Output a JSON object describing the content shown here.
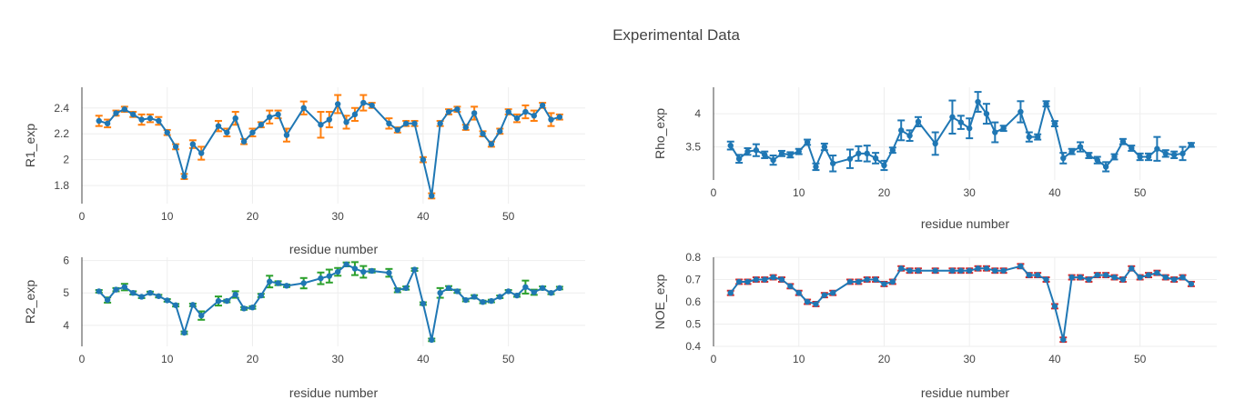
{
  "title": "Experimental Data",
  "colors": {
    "line": "#1f77b4",
    "grid": "#eeeeee",
    "axis": "#444444",
    "text": "#444444"
  },
  "chart_data": [
    {
      "type": "line",
      "ylabel": "R1_exp",
      "xlabel": "residue number",
      "err_color": "#ff7f0e",
      "xlim": [
        0,
        59
      ],
      "ylim": [
        1.66,
        2.56
      ],
      "xticks": [
        0,
        10,
        20,
        30,
        40,
        50
      ],
      "yticks": [
        1.8,
        2,
        2.2,
        2.4
      ],
      "ytick_labels": [
        "1.8",
        "2",
        "2.2",
        "2.4"
      ],
      "grid": true,
      "x": [
        2,
        3,
        4,
        5,
        6,
        7,
        8,
        9,
        10,
        11,
        12,
        13,
        14,
        16,
        17,
        18,
        19,
        20,
        21,
        22,
        23,
        24,
        26,
        28,
        29,
        30,
        31,
        32,
        33,
        34,
        36,
        37,
        38,
        39,
        40,
        41,
        42,
        43,
        44,
        45,
        46,
        47,
        48,
        49,
        50,
        51,
        52,
        53,
        54,
        55,
        56
      ],
      "y": [
        2.3,
        2.28,
        2.36,
        2.39,
        2.35,
        2.31,
        2.32,
        2.3,
        2.21,
        2.1,
        1.87,
        2.12,
        2.05,
        2.26,
        2.21,
        2.32,
        2.14,
        2.21,
        2.27,
        2.33,
        2.35,
        2.19,
        2.4,
        2.27,
        2.31,
        2.43,
        2.29,
        2.35,
        2.44,
        2.42,
        2.28,
        2.23,
        2.28,
        2.28,
        2.0,
        1.72,
        2.28,
        2.37,
        2.39,
        2.25,
        2.36,
        2.2,
        2.12,
        2.22,
        2.37,
        2.32,
        2.37,
        2.34,
        2.42,
        2.31,
        2.33
      ],
      "err": [
        0.04,
        0.03,
        0.02,
        0.02,
        0.02,
        0.04,
        0.03,
        0.03,
        0.02,
        0.02,
        0.02,
        0.03,
        0.05,
        0.04,
        0.03,
        0.05,
        0.02,
        0.03,
        0.02,
        0.05,
        0.03,
        0.05,
        0.05,
        0.1,
        0.06,
        0.07,
        0.05,
        0.05,
        0.06,
        0.02,
        0.04,
        0.02,
        0.02,
        0.02,
        0.02,
        0.02,
        0.02,
        0.02,
        0.02,
        0.02,
        0.05,
        0.02,
        0.02,
        0.02,
        0.02,
        0.03,
        0.05,
        0.04,
        0.02,
        0.05,
        0.02
      ]
    },
    {
      "type": "line",
      "ylabel": "Rho_exp",
      "xlabel": "residue number",
      "err_color": "#1f77b4",
      "xlim": [
        0,
        59
      ],
      "ylim": [
        3.0,
        4.4
      ],
      "xticks": [
        0,
        10,
        20,
        30,
        40,
        50
      ],
      "yticks": [
        3.5,
        4
      ],
      "ytick_labels": [
        "3.5",
        "4"
      ],
      "grid": true,
      "x": [
        2,
        3,
        4,
        5,
        6,
        7,
        8,
        9,
        10,
        11,
        12,
        13,
        14,
        16,
        17,
        18,
        19,
        20,
        21,
        22,
        23,
        24,
        26,
        28,
        29,
        30,
        31,
        32,
        33,
        34,
        36,
        37,
        38,
        39,
        40,
        41,
        42,
        43,
        44,
        45,
        46,
        47,
        48,
        49,
        50,
        51,
        52,
        53,
        54,
        55,
        56
      ],
      "y": [
        3.52,
        3.32,
        3.43,
        3.45,
        3.38,
        3.3,
        3.4,
        3.38,
        3.43,
        3.57,
        3.2,
        3.5,
        3.25,
        3.32,
        3.4,
        3.4,
        3.33,
        3.22,
        3.45,
        3.75,
        3.67,
        3.88,
        3.55,
        3.95,
        3.87,
        3.78,
        4.18,
        4.0,
        3.72,
        3.78,
        4.03,
        3.65,
        3.65,
        4.15,
        3.85,
        3.33,
        3.43,
        3.5,
        3.37,
        3.3,
        3.2,
        3.35,
        3.58,
        3.48,
        3.35,
        3.35,
        3.47,
        3.4,
        3.38,
        3.4,
        3.53
      ],
      "err": [
        0.06,
        0.06,
        0.05,
        0.09,
        0.05,
        0.07,
        0.04,
        0.04,
        0.04,
        0.04,
        0.05,
        0.05,
        0.12,
        0.14,
        0.11,
        0.12,
        0.08,
        0.07,
        0.04,
        0.15,
        0.08,
        0.07,
        0.17,
        0.25,
        0.1,
        0.15,
        0.15,
        0.15,
        0.15,
        0.04,
        0.16,
        0.07,
        0.04,
        0.04,
        0.04,
        0.08,
        0.04,
        0.07,
        0.04,
        0.05,
        0.07,
        0.04,
        0.04,
        0.04,
        0.05,
        0.05,
        0.18,
        0.05,
        0.05,
        0.1,
        0.03
      ]
    },
    {
      "type": "line",
      "ylabel": "R2_exp",
      "xlabel": "residue number",
      "err_color": "#2ca02c",
      "xlim": [
        0,
        59
      ],
      "ylim": [
        3.35,
        6.1
      ],
      "xticks": [
        0,
        10,
        20,
        30,
        40,
        50
      ],
      "yticks": [
        4,
        5,
        6
      ],
      "ytick_labels": [
        "4",
        "5",
        "6"
      ],
      "grid": true,
      "x": [
        2,
        3,
        4,
        5,
        6,
        7,
        8,
        9,
        10,
        11,
        12,
        13,
        14,
        16,
        17,
        18,
        19,
        20,
        21,
        22,
        23,
        24,
        26,
        28,
        29,
        30,
        31,
        32,
        33,
        34,
        36,
        37,
        38,
        39,
        40,
        41,
        42,
        43,
        44,
        45,
        46,
        47,
        48,
        49,
        50,
        51,
        52,
        53,
        54,
        55,
        56
      ],
      "y": [
        5.05,
        4.78,
        5.1,
        5.18,
        5.0,
        4.88,
        5.0,
        4.9,
        4.77,
        4.62,
        3.77,
        4.63,
        4.3,
        4.75,
        4.75,
        4.95,
        4.52,
        4.55,
        4.92,
        5.35,
        5.3,
        5.22,
        5.3,
        5.45,
        5.52,
        5.65,
        5.88,
        5.75,
        5.65,
        5.68,
        5.62,
        5.08,
        5.15,
        5.72,
        4.67,
        3.55,
        5.0,
        5.15,
        5.05,
        4.78,
        4.88,
        4.72,
        4.75,
        4.88,
        5.05,
        4.92,
        5.18,
        5.02,
        5.15,
        5.0,
        5.15
      ],
      "err": [
        0.04,
        0.08,
        0.05,
        0.1,
        0.05,
        0.04,
        0.04,
        0.04,
        0.04,
        0.04,
        0.04,
        0.04,
        0.13,
        0.14,
        0.04,
        0.1,
        0.04,
        0.04,
        0.05,
        0.18,
        0.06,
        0.04,
        0.16,
        0.18,
        0.2,
        0.12,
        0.06,
        0.2,
        0.18,
        0.05,
        0.12,
        0.06,
        0.05,
        0.04,
        0.04,
        0.04,
        0.15,
        0.06,
        0.05,
        0.04,
        0.05,
        0.04,
        0.04,
        0.04,
        0.04,
        0.04,
        0.2,
        0.08,
        0.05,
        0.04,
        0.04
      ]
    },
    {
      "type": "line",
      "ylabel": "NOE_exp",
      "xlabel": "residue number",
      "err_color": "#d62728",
      "xlim": [
        0,
        59
      ],
      "ylim": [
        0.4,
        0.8
      ],
      "xticks": [
        0,
        10,
        20,
        30,
        40,
        50
      ],
      "yticks": [
        0.4,
        0.5,
        0.6,
        0.7,
        0.8
      ],
      "ytick_labels": [
        "0.4",
        "0.5",
        "0.6",
        "0.7",
        "0.8"
      ],
      "grid": true,
      "x": [
        2,
        3,
        4,
        5,
        6,
        7,
        8,
        9,
        10,
        11,
        12,
        13,
        14,
        16,
        17,
        18,
        19,
        20,
        21,
        22,
        23,
        24,
        26,
        28,
        29,
        30,
        31,
        32,
        33,
        34,
        36,
        37,
        38,
        39,
        40,
        41,
        42,
        43,
        44,
        45,
        46,
        47,
        48,
        49,
        50,
        51,
        52,
        53,
        54,
        55,
        56
      ],
      "y": [
        0.64,
        0.69,
        0.69,
        0.7,
        0.7,
        0.71,
        0.7,
        0.67,
        0.64,
        0.6,
        0.59,
        0.63,
        0.64,
        0.69,
        0.69,
        0.7,
        0.7,
        0.68,
        0.69,
        0.75,
        0.74,
        0.74,
        0.74,
        0.74,
        0.74,
        0.74,
        0.75,
        0.75,
        0.74,
        0.74,
        0.76,
        0.72,
        0.72,
        0.7,
        0.58,
        0.43,
        0.71,
        0.71,
        0.7,
        0.72,
        0.72,
        0.71,
        0.7,
        0.75,
        0.71,
        0.72,
        0.73,
        0.71,
        0.7,
        0.71,
        0.68
      ],
      "err": [
        0.01,
        0.01,
        0.01,
        0.01,
        0.01,
        0.01,
        0.01,
        0.01,
        0.01,
        0.01,
        0.01,
        0.01,
        0.01,
        0.01,
        0.01,
        0.01,
        0.01,
        0.01,
        0.01,
        0.01,
        0.01,
        0.01,
        0.01,
        0.01,
        0.01,
        0.01,
        0.01,
        0.01,
        0.01,
        0.01,
        0.01,
        0.01,
        0.01,
        0.01,
        0.01,
        0.01,
        0.01,
        0.01,
        0.01,
        0.01,
        0.01,
        0.01,
        0.01,
        0.01,
        0.01,
        0.01,
        0.01,
        0.01,
        0.01,
        0.01,
        0.01
      ]
    }
  ]
}
